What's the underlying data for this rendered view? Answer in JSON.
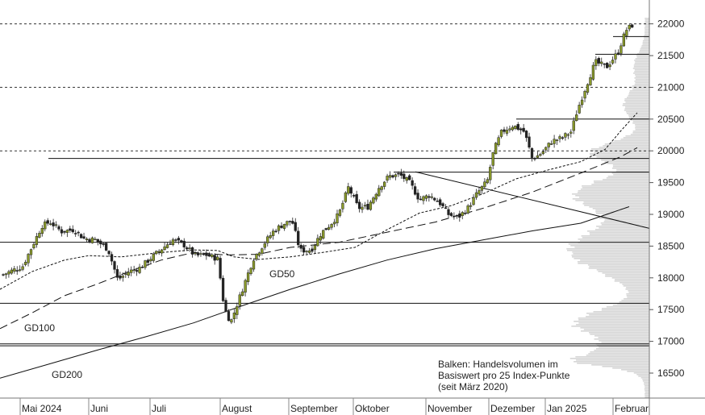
{
  "chart_data": {
    "type": "candlestick",
    "y_axis": {
      "ticks": [
        16500,
        17000,
        17500,
        18000,
        18500,
        19000,
        19500,
        20000,
        20500,
        21000,
        21500,
        22000
      ],
      "range": [
        16200,
        22200
      ]
    },
    "x_axis": {
      "month_labels": [
        "Mai 2024",
        "Juni",
        "Juli",
        "August",
        "September",
        "Oktober",
        "November",
        "Dezember",
        "Jan 2025",
        "Februar"
      ]
    },
    "dashed_levels": [
      22000,
      21000,
      20000
    ],
    "horizontal_levels": [
      18560,
      17600,
      16960,
      16930
    ],
    "moving_averages": [
      {
        "name": "GD50",
        "label": "GD50"
      },
      {
        "name": "GD100",
        "label": "GD100"
      },
      {
        "name": "GD200",
        "label": "GD200"
      }
    ],
    "volume_note": [
      "Balken: Handelsvolumen im",
      "Basiswert pro 25 Index-Punkte",
      "(seit März 2020)"
    ],
    "colors": {
      "up": "#8a9a2a",
      "down": "#222222",
      "volume": "#d6d6d6",
      "line": "#111111"
    }
  }
}
